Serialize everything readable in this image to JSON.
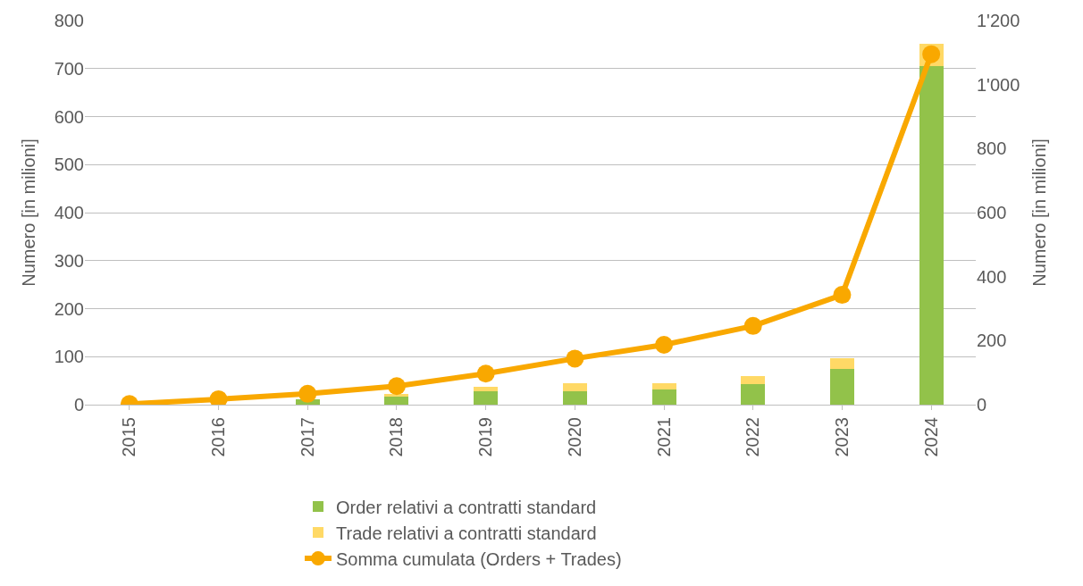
{
  "chart_data": {
    "type": "bar",
    "stacked": true,
    "categories": [
      "2015",
      "2016",
      "2017",
      "2018",
      "2019",
      "2020",
      "2021",
      "2022",
      "2023",
      "2024"
    ],
    "series": [
      {
        "name": "Order relativi a contratti standard",
        "color": "#92c24a",
        "values": [
          null,
          null,
          12,
          16,
          28,
          28,
          31,
          43,
          75,
          706
        ]
      },
      {
        "name": "Trade relativi a contratti standard",
        "color": "#ffd966",
        "values": [
          null,
          null,
          null,
          7,
          10,
          16,
          14,
          16,
          21,
          46
        ]
      },
      {
        "name": "Somma cumulata (Orders + Trades)",
        "type": "line",
        "axis": "y2",
        "color": "#f9a800",
        "marker": "circle",
        "line_style": "solid",
        "values": [
          2,
          17,
          34,
          58,
          97,
          144,
          187,
          246,
          343,
          1095
        ]
      }
    ],
    "ylabel": "Numero [in milioni]",
    "y2label": "Numero [in milioni]",
    "ylim": [
      0,
      800
    ],
    "yticks": [
      0,
      100,
      200,
      300,
      400,
      500,
      600,
      700,
      800
    ],
    "y2lim": [
      0,
      1200
    ],
    "y2ticks": [
      0,
      200,
      400,
      600,
      800,
      {
        "value": 1000,
        "label": "1'000"
      },
      {
        "value": 1200,
        "label": "1'200"
      }
    ],
    "grid": "y",
    "legend": "bottom"
  }
}
